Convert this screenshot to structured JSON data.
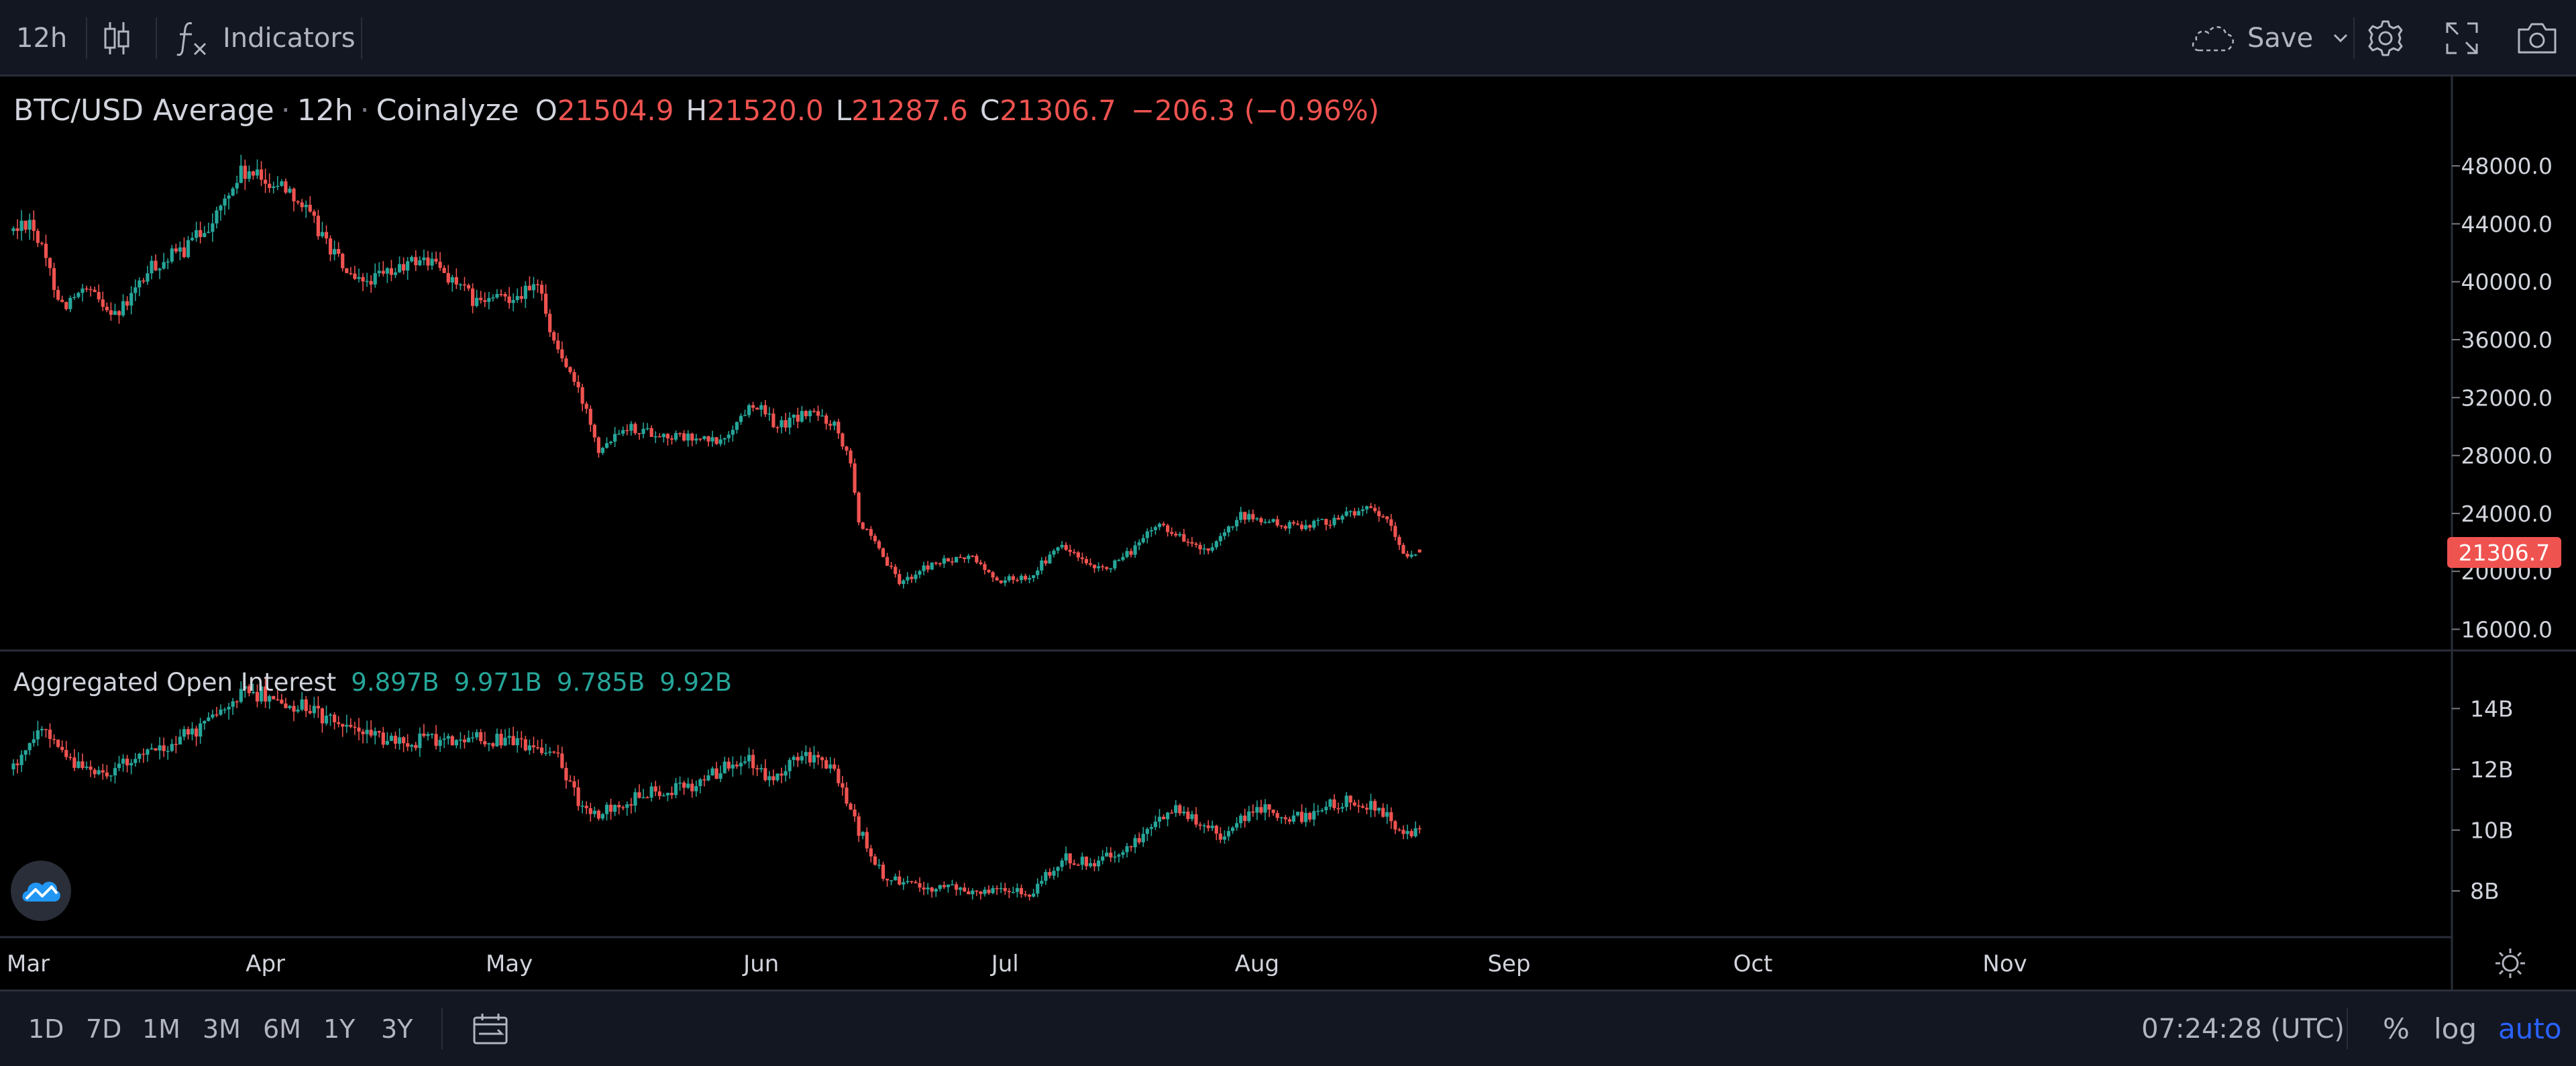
{
  "toolbar": {
    "interval": "12h",
    "indicators_label": "Indicators",
    "save_label": "Save"
  },
  "legend": {
    "symbol": "BTC/USD Average",
    "interval": "12h",
    "source": "Coinalyze",
    "o_label": "O",
    "o_value": "21504.9",
    "h_label": "H",
    "h_value": "21520.0",
    "l_label": "L",
    "l_value": "21287.6",
    "c_label": "C",
    "c_value": "21306.7",
    "change": "−206.3 (−0.96%)"
  },
  "oi_legend": {
    "name": "Aggregated Open Interest",
    "values": [
      "9.897B",
      "9.971B",
      "9.785B",
      "9.92B"
    ]
  },
  "price_badge": "21306.7",
  "bottombar": {
    "ranges": [
      "1D",
      "7D",
      "1M",
      "3M",
      "6M",
      "1Y",
      "3Y"
    ],
    "clock": "07:24:28 (UTC)",
    "percent_label": "%",
    "log_label": "log",
    "auto_label": "auto"
  },
  "colors": {
    "up": "#26a69a",
    "down": "#ef5350",
    "background": "#000000",
    "panel": "#131722",
    "accent": "#2962ff"
  },
  "icons": [
    "bar-style-icon",
    "fx-icon",
    "cloud-save-icon",
    "chevron-down-icon",
    "gear-icon",
    "fullscreen-icon",
    "camera-icon",
    "date-range-icon",
    "settings-sun-icon",
    "coinalyze-logo-icon"
  ],
  "chart_data": [
    {
      "type": "candlestick",
      "title": "BTC/USD Average · 12h · Coinalyze",
      "x_ticks": [
        "Mar",
        "Apr",
        "May",
        "Jun",
        "Jul",
        "Aug",
        "Sep",
        "Oct",
        "Nov"
      ],
      "x_range": [
        "2022-03-01",
        "2022-11-30"
      ],
      "y_ticks": [
        "16000.0",
        "20000.0",
        "24000.0",
        "28000.0",
        "32000.0",
        "36000.0",
        "40000.0",
        "44000.0",
        "48000.0"
      ],
      "ylim": [
        15000,
        50000
      ],
      "last_value": 21306.7,
      "anchors": [
        [
          "2022-03-01",
          43500
        ],
        [
          "2022-03-03",
          44400
        ],
        [
          "2022-03-07",
          38400
        ],
        [
          "2022-03-10",
          39300
        ],
        [
          "2022-03-14",
          37800
        ],
        [
          "2022-03-18",
          41000
        ],
        [
          "2022-03-22",
          42200
        ],
        [
          "2022-03-26",
          44600
        ],
        [
          "2022-03-29",
          47500
        ],
        [
          "2022-04-04",
          46500
        ],
        [
          "2022-04-08",
          43200
        ],
        [
          "2022-04-12",
          39800
        ],
        [
          "2022-04-16",
          40500
        ],
        [
          "2022-04-20",
          41600
        ],
        [
          "2022-04-22",
          41200
        ],
        [
          "2022-04-27",
          38500
        ],
        [
          "2022-04-30",
          38900
        ],
        [
          "2022-05-05",
          39600
        ],
        [
          "2022-05-06",
          36500
        ],
        [
          "2022-05-09",
          33000
        ],
        [
          "2022-05-11",
          30500
        ],
        [
          "2022-05-12",
          28500
        ],
        [
          "2022-05-15",
          30100
        ],
        [
          "2022-05-20",
          29400
        ],
        [
          "2022-05-27",
          28900
        ],
        [
          "2022-05-31",
          31700
        ],
        [
          "2022-06-03",
          30000
        ],
        [
          "2022-06-07",
          31000
        ],
        [
          "2022-06-10",
          30200
        ],
        [
          "2022-06-12",
          27800
        ],
        [
          "2022-06-13",
          23500
        ],
        [
          "2022-06-15",
          21800
        ],
        [
          "2022-06-18",
          19200
        ],
        [
          "2022-06-22",
          20500
        ],
        [
          "2022-06-27",
          21000
        ],
        [
          "2022-06-30",
          19300
        ],
        [
          "2022-07-04",
          19700
        ],
        [
          "2022-07-08",
          21800
        ],
        [
          "2022-07-12",
          20000
        ],
        [
          "2022-07-15",
          20600
        ],
        [
          "2022-07-20",
          23300
        ],
        [
          "2022-07-26",
          21200
        ],
        [
          "2022-07-30",
          23800
        ],
        [
          "2022-08-05",
          23100
        ],
        [
          "2022-08-10",
          23500
        ],
        [
          "2022-08-14",
          24400
        ],
        [
          "2022-08-17",
          23500
        ],
        [
          "2022-08-19",
          21200
        ],
        [
          "2022-08-21",
          21306.7
        ]
      ]
    },
    {
      "type": "candlestick",
      "title": "Aggregated Open Interest",
      "x_ticks": [
        "Mar",
        "Apr",
        "May",
        "Jun",
        "Jul",
        "Aug",
        "Sep",
        "Oct",
        "Nov"
      ],
      "y_ticks": [
        "8B",
        "10B",
        "12B",
        "14B"
      ],
      "ylim": [
        6.7,
        15.8
      ],
      "unit": "B",
      "anchors": [
        [
          "2022-03-01",
          12.0
        ],
        [
          "2022-03-04",
          13.3
        ],
        [
          "2022-03-08",
          12.3
        ],
        [
          "2022-03-12",
          11.9
        ],
        [
          "2022-03-18",
          12.6
        ],
        [
          "2022-03-24",
          13.3
        ],
        [
          "2022-03-30",
          14.6
        ],
        [
          "2022-04-04",
          14.2
        ],
        [
          "2022-04-10",
          13.5
        ],
        [
          "2022-04-16",
          13.0
        ],
        [
          "2022-04-22",
          12.9
        ],
        [
          "2022-04-28",
          13.0
        ],
        [
          "2022-05-05",
          12.7
        ],
        [
          "2022-05-07",
          12.4
        ],
        [
          "2022-05-09",
          11.2
        ],
        [
          "2022-05-11",
          10.4
        ],
        [
          "2022-05-18",
          11.2
        ],
        [
          "2022-05-24",
          11.5
        ],
        [
          "2022-05-30",
          12.4
        ],
        [
          "2022-06-02",
          11.6
        ],
        [
          "2022-06-06",
          12.6
        ],
        [
          "2022-06-10",
          11.9
        ],
        [
          "2022-06-13",
          10.0
        ],
        [
          "2022-06-16",
          8.5
        ],
        [
          "2022-06-22",
          8.1
        ],
        [
          "2022-06-30",
          8.0
        ],
        [
          "2022-07-04",
          7.9
        ],
        [
          "2022-07-08",
          9.1
        ],
        [
          "2022-07-12",
          8.9
        ],
        [
          "2022-07-18",
          9.8
        ],
        [
          "2022-07-22",
          10.7
        ],
        [
          "2022-07-28",
          9.8
        ],
        [
          "2022-08-01",
          10.8
        ],
        [
          "2022-08-06",
          10.4
        ],
        [
          "2022-08-12",
          11.0
        ],
        [
          "2022-08-16",
          10.8
        ],
        [
          "2022-08-19",
          9.8
        ],
        [
          "2022-08-21",
          9.92
        ]
      ]
    }
  ]
}
